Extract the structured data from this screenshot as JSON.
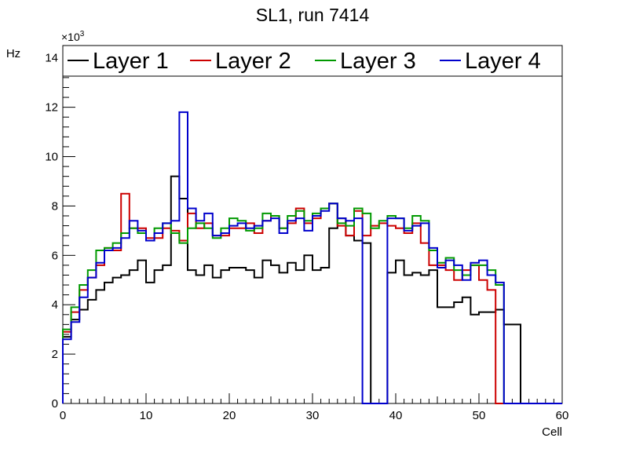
{
  "chart_data": {
    "type": "histogram-step",
    "title": "SL1, run 7414",
    "xlabel": "Cell",
    "ylabel": "Hz",
    "y_exponent_label": "×10",
    "y_exponent_power": "3",
    "xlim": [
      0,
      60
    ],
    "ylim": [
      0,
      14.5
    ],
    "xticks": [
      0,
      10,
      20,
      30,
      40,
      50,
      60
    ],
    "yticks": [
      0,
      2,
      4,
      6,
      8,
      10,
      12,
      14
    ],
    "y_units_scale": 1000,
    "legend_position": "top",
    "grid": false,
    "series": [
      {
        "name": "Layer 1",
        "color": "#000000",
        "values": [
          2.7,
          3.4,
          3.8,
          4.2,
          4.6,
          4.9,
          5.1,
          5.2,
          5.4,
          5.8,
          4.9,
          5.4,
          5.6,
          9.2,
          8.3,
          5.4,
          5.2,
          5.6,
          5.1,
          5.4,
          5.5,
          5.5,
          5.4,
          5.1,
          5.8,
          5.6,
          5.3,
          5.7,
          5.4,
          6.0,
          5.4,
          5.5,
          7.1,
          7.5,
          6.8,
          6.6,
          6.5,
          0,
          0,
          5.3,
          5.8,
          5.2,
          5.3,
          5.2,
          5.4,
          3.9,
          3.9,
          4.1,
          4.3,
          3.6,
          3.7,
          3.7,
          3.8,
          3.2,
          3.2,
          0,
          0,
          0,
          0,
          0
        ]
      },
      {
        "name": "Layer 2",
        "color": "#cc0000",
        "values": [
          2.9,
          3.7,
          4.6,
          5.1,
          5.6,
          6.3,
          6.2,
          8.5,
          7.1,
          7.1,
          6.7,
          6.7,
          7.1,
          7.0,
          6.6,
          7.7,
          7.1,
          7.3,
          6.8,
          6.8,
          7.1,
          7.1,
          7.3,
          6.9,
          7.4,
          7.6,
          7.1,
          7.3,
          7.9,
          7.3,
          7.5,
          7.9,
          8.1,
          7.2,
          6.8,
          7.8,
          6.8,
          7.2,
          7.3,
          7.2,
          7.1,
          6.9,
          7.3,
          6.5,
          5.6,
          5.6,
          5.4,
          5.0,
          5.4,
          5.6,
          5.0,
          4.6,
          0,
          0,
          0,
          0,
          0,
          0,
          0,
          0
        ]
      },
      {
        "name": "Layer 3",
        "color": "#009900",
        "values": [
          3.0,
          3.9,
          4.8,
          5.4,
          6.2,
          6.3,
          6.5,
          6.9,
          7.1,
          6.9,
          6.6,
          7.1,
          7.3,
          6.9,
          6.5,
          7.1,
          7.3,
          7.1,
          6.7,
          7.1,
          7.5,
          7.4,
          7.0,
          7.1,
          7.7,
          7.6,
          7.1,
          7.6,
          7.8,
          7.4,
          7.7,
          7.9,
          8.1,
          7.3,
          7.2,
          7.9,
          7.7,
          7.1,
          7.4,
          7.6,
          7.5,
          7.1,
          7.6,
          7.4,
          6.2,
          5.7,
          5.9,
          5.4,
          5.2,
          5.6,
          5.6,
          5.4,
          4.8,
          0,
          0,
          0,
          0,
          0,
          0,
          0
        ]
      },
      {
        "name": "Layer 4",
        "color": "#0000cc",
        "values": [
          2.6,
          3.3,
          4.3,
          5.1,
          5.7,
          6.2,
          6.3,
          6.7,
          7.4,
          7.0,
          6.6,
          6.9,
          7.3,
          7.4,
          11.8,
          7.9,
          7.4,
          7.7,
          6.8,
          6.9,
          7.2,
          7.3,
          7.1,
          7.2,
          7.4,
          7.5,
          6.9,
          7.4,
          7.5,
          7.0,
          7.6,
          7.8,
          8.1,
          7.5,
          7.4,
          7.5,
          0,
          0,
          0,
          7.5,
          7.5,
          7.0,
          7.2,
          7.3,
          6.3,
          5.5,
          5.8,
          5.6,
          5.0,
          5.7,
          5.8,
          5.2,
          4.9,
          0,
          0,
          0,
          0,
          0,
          0,
          0
        ]
      }
    ]
  }
}
